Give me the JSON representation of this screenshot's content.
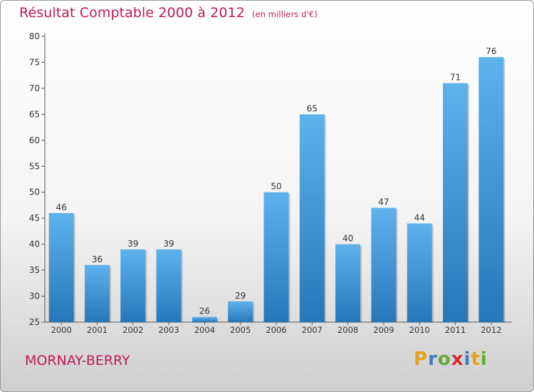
{
  "title": "Résultat Comptable 2000 à 2012",
  "subtitle": "(en milliers d'€)",
  "commune": "MORNAY-BERRY",
  "logo": {
    "letters": [
      "P",
      "r",
      "o",
      "x",
      "i",
      "t",
      "i"
    ],
    "colors": [
      "#e8a11c",
      "#3f7ec0",
      "#62a83a",
      "#d62c2c",
      "#3f7ec0",
      "#e8a11c",
      "#62a83a"
    ]
  },
  "colors": {
    "title": "#c0185a",
    "bar_light": "#5eb2ec",
    "bar_dark": "#2677b8"
  },
  "chart_data": {
    "type": "bar",
    "categories": [
      "2000",
      "2001",
      "2002",
      "2003",
      "2004",
      "2005",
      "2006",
      "2007",
      "2008",
      "2009",
      "2010",
      "2011",
      "2012"
    ],
    "values": [
      46,
      36,
      39,
      39,
      26,
      29,
      50,
      65,
      40,
      47,
      44,
      71,
      76
    ],
    "ylim": [
      25,
      80
    ],
    "yticks": [
      25,
      30,
      35,
      40,
      45,
      50,
      55,
      60,
      65,
      70,
      75,
      80
    ],
    "grid": false
  }
}
